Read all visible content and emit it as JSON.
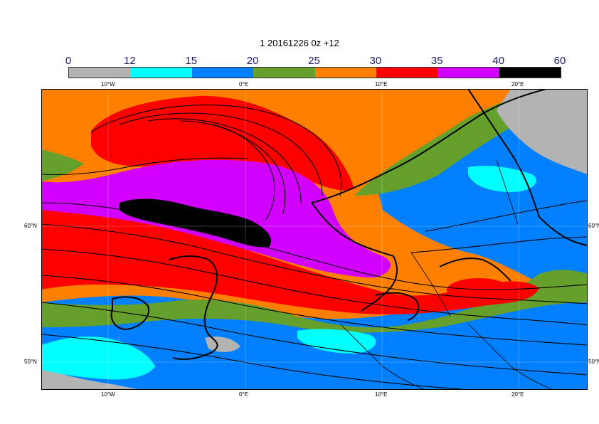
{
  "title": "1 20161226 0z +12",
  "legend": {
    "labels": [
      "0",
      "12",
      "15",
      "20",
      "25",
      "30",
      "35",
      "40",
      "60"
    ],
    "colors": [
      "#b3b3b3",
      "#00ffff",
      "#0080ff",
      "#66a02c",
      "#ff8000",
      "#ff0000",
      "#d200ff",
      "#000000"
    ]
  },
  "lon_labels": [
    "10°W",
    "0°E",
    "10°E",
    "20°E"
  ],
  "lat_labels": [
    "60°N",
    "50°N"
  ],
  "lat_labels_right": [
    "60°N",
    "50°N"
  ]
}
